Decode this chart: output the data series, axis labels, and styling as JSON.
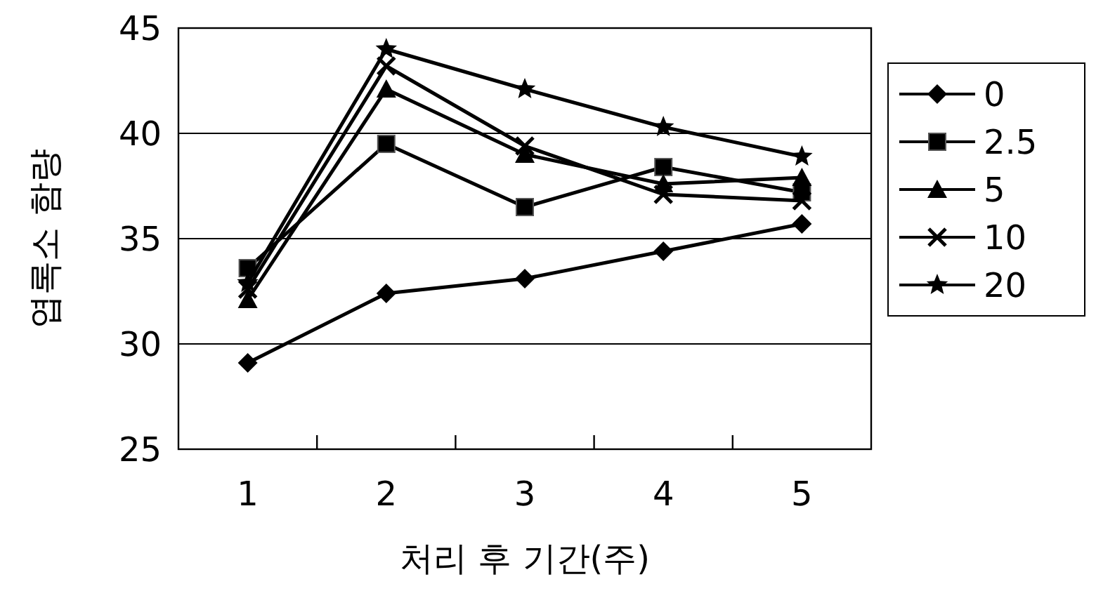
{
  "chart_data": {
    "type": "line",
    "xlabel": "처리 후 기간(주)",
    "ylabel": "엽록소 함량",
    "categories": [
      "1",
      "2",
      "3",
      "4",
      "5"
    ],
    "ylim": [
      25,
      45
    ],
    "yticks": [
      25,
      30,
      35,
      40,
      45
    ],
    "grid": "y",
    "legend": "right",
    "line_style": "solid",
    "series": [
      {
        "name": "0",
        "color": "#000000",
        "marker": "diamond",
        "values": [
          29.1,
          32.4,
          33.1,
          34.4,
          35.7
        ]
      },
      {
        "name": "2.5",
        "color": "#000000",
        "marker": "square",
        "values": [
          33.6,
          39.5,
          36.5,
          38.4,
          37.2
        ]
      },
      {
        "name": "5",
        "color": "#000000",
        "marker": "triangle",
        "values": [
          32.1,
          42.1,
          39.0,
          37.6,
          37.9
        ]
      },
      {
        "name": "10",
        "color": "#000000",
        "marker": "cross",
        "values": [
          32.6,
          43.2,
          39.4,
          37.1,
          36.8
        ]
      },
      {
        "name": "20",
        "color": "#000000",
        "marker": "star",
        "values": [
          32.9,
          44.0,
          42.1,
          40.3,
          38.9
        ]
      }
    ]
  }
}
